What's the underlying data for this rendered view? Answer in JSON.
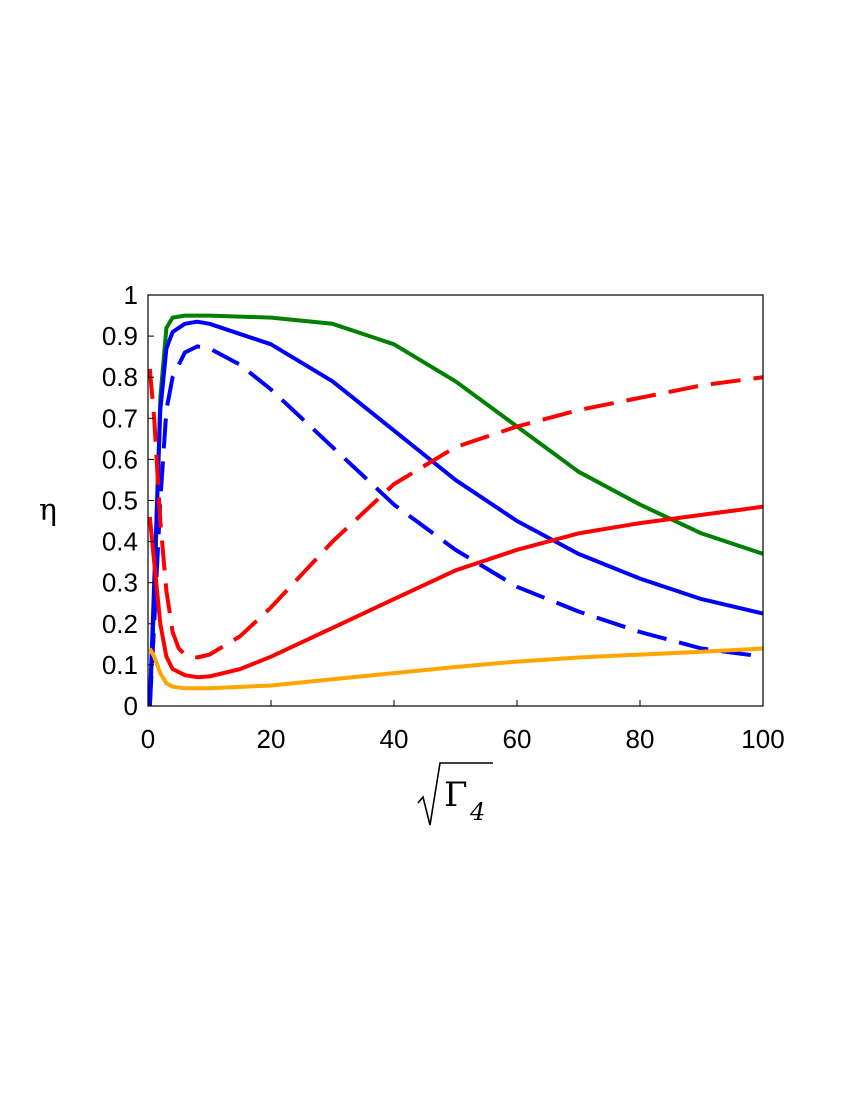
{
  "chart_data": {
    "type": "line",
    "title": "",
    "ylabel": "η",
    "xlabel": {
      "symbol": "Γ",
      "subscript": "4"
    },
    "xlim": [
      0,
      100
    ],
    "ylim": [
      0,
      1
    ],
    "x_ticks": [
      "0",
      "20",
      "40",
      "60",
      "80",
      "100"
    ],
    "y_ticks": [
      "0",
      "0.1",
      "0.2",
      "0.3",
      "0.4",
      "0.5",
      "0.6",
      "0.7",
      "0.8",
      "0.9",
      "1"
    ],
    "grid": false,
    "legend": "none",
    "series": [
      {
        "color": "#008000",
        "style": "solid",
        "points": [
          [
            0.3,
            0.0
          ],
          [
            1,
            0.25
          ],
          [
            2,
            0.75
          ],
          [
            3,
            0.92
          ],
          [
            4,
            0.945
          ],
          [
            6,
            0.95
          ],
          [
            10,
            0.95
          ],
          [
            20,
            0.945
          ],
          [
            30,
            0.93
          ],
          [
            40,
            0.88
          ],
          [
            50,
            0.79
          ],
          [
            60,
            0.68
          ],
          [
            70,
            0.57
          ],
          [
            80,
            0.49
          ],
          [
            90,
            0.42
          ],
          [
            100,
            0.37
          ]
        ]
      },
      {
        "color": "#0000ff",
        "style": "solid",
        "points": [
          [
            0.3,
            0.0
          ],
          [
            1,
            0.3
          ],
          [
            2,
            0.72
          ],
          [
            3,
            0.87
          ],
          [
            4,
            0.91
          ],
          [
            6,
            0.93
          ],
          [
            8,
            0.935
          ],
          [
            10,
            0.93
          ],
          [
            20,
            0.88
          ],
          [
            30,
            0.79
          ],
          [
            40,
            0.67
          ],
          [
            50,
            0.55
          ],
          [
            60,
            0.45
          ],
          [
            70,
            0.37
          ],
          [
            80,
            0.31
          ],
          [
            90,
            0.26
          ],
          [
            100,
            0.225
          ]
        ]
      },
      {
        "color": "#0000ff",
        "style": "dashed",
        "points": [
          [
            0.3,
            0.0
          ],
          [
            1,
            0.2
          ],
          [
            2,
            0.5
          ],
          [
            3,
            0.72
          ],
          [
            4,
            0.8
          ],
          [
            6,
            0.86
          ],
          [
            8,
            0.875
          ],
          [
            10,
            0.87
          ],
          [
            15,
            0.83
          ],
          [
            20,
            0.77
          ],
          [
            30,
            0.63
          ],
          [
            40,
            0.49
          ],
          [
            50,
            0.38
          ],
          [
            60,
            0.29
          ],
          [
            70,
            0.23
          ],
          [
            80,
            0.18
          ],
          [
            90,
            0.14
          ],
          [
            100,
            0.12
          ]
        ]
      },
      {
        "color": "#ff0000",
        "style": "dashed",
        "points": [
          [
            0.3,
            0.82
          ],
          [
            1,
            0.7
          ],
          [
            2,
            0.45
          ],
          [
            3,
            0.28
          ],
          [
            4,
            0.18
          ],
          [
            5,
            0.14
          ],
          [
            6,
            0.125
          ],
          [
            8,
            0.118
          ],
          [
            10,
            0.125
          ],
          [
            15,
            0.17
          ],
          [
            20,
            0.24
          ],
          [
            30,
            0.4
          ],
          [
            40,
            0.54
          ],
          [
            50,
            0.63
          ],
          [
            60,
            0.68
          ],
          [
            70,
            0.72
          ],
          [
            80,
            0.75
          ],
          [
            90,
            0.78
          ],
          [
            100,
            0.8
          ]
        ]
      },
      {
        "color": "#ff0000",
        "style": "solid",
        "points": [
          [
            0.3,
            0.46
          ],
          [
            1,
            0.35
          ],
          [
            2,
            0.2
          ],
          [
            3,
            0.12
          ],
          [
            4,
            0.09
          ],
          [
            6,
            0.075
          ],
          [
            8,
            0.07
          ],
          [
            10,
            0.072
          ],
          [
            15,
            0.09
          ],
          [
            20,
            0.12
          ],
          [
            30,
            0.19
          ],
          [
            40,
            0.26
          ],
          [
            50,
            0.33
          ],
          [
            60,
            0.38
          ],
          [
            70,
            0.42
          ],
          [
            80,
            0.445
          ],
          [
            90,
            0.465
          ],
          [
            100,
            0.485
          ]
        ]
      },
      {
        "color": "#ffa500",
        "style": "solid",
        "points": [
          [
            0.3,
            0.14
          ],
          [
            1,
            0.12
          ],
          [
            2,
            0.08
          ],
          [
            3,
            0.055
          ],
          [
            4,
            0.047
          ],
          [
            6,
            0.043
          ],
          [
            10,
            0.043
          ],
          [
            20,
            0.05
          ],
          [
            30,
            0.065
          ],
          [
            40,
            0.08
          ],
          [
            50,
            0.095
          ],
          [
            60,
            0.108
          ],
          [
            70,
            0.118
          ],
          [
            80,
            0.125
          ],
          [
            90,
            0.132
          ],
          [
            100,
            0.14
          ]
        ]
      }
    ]
  }
}
